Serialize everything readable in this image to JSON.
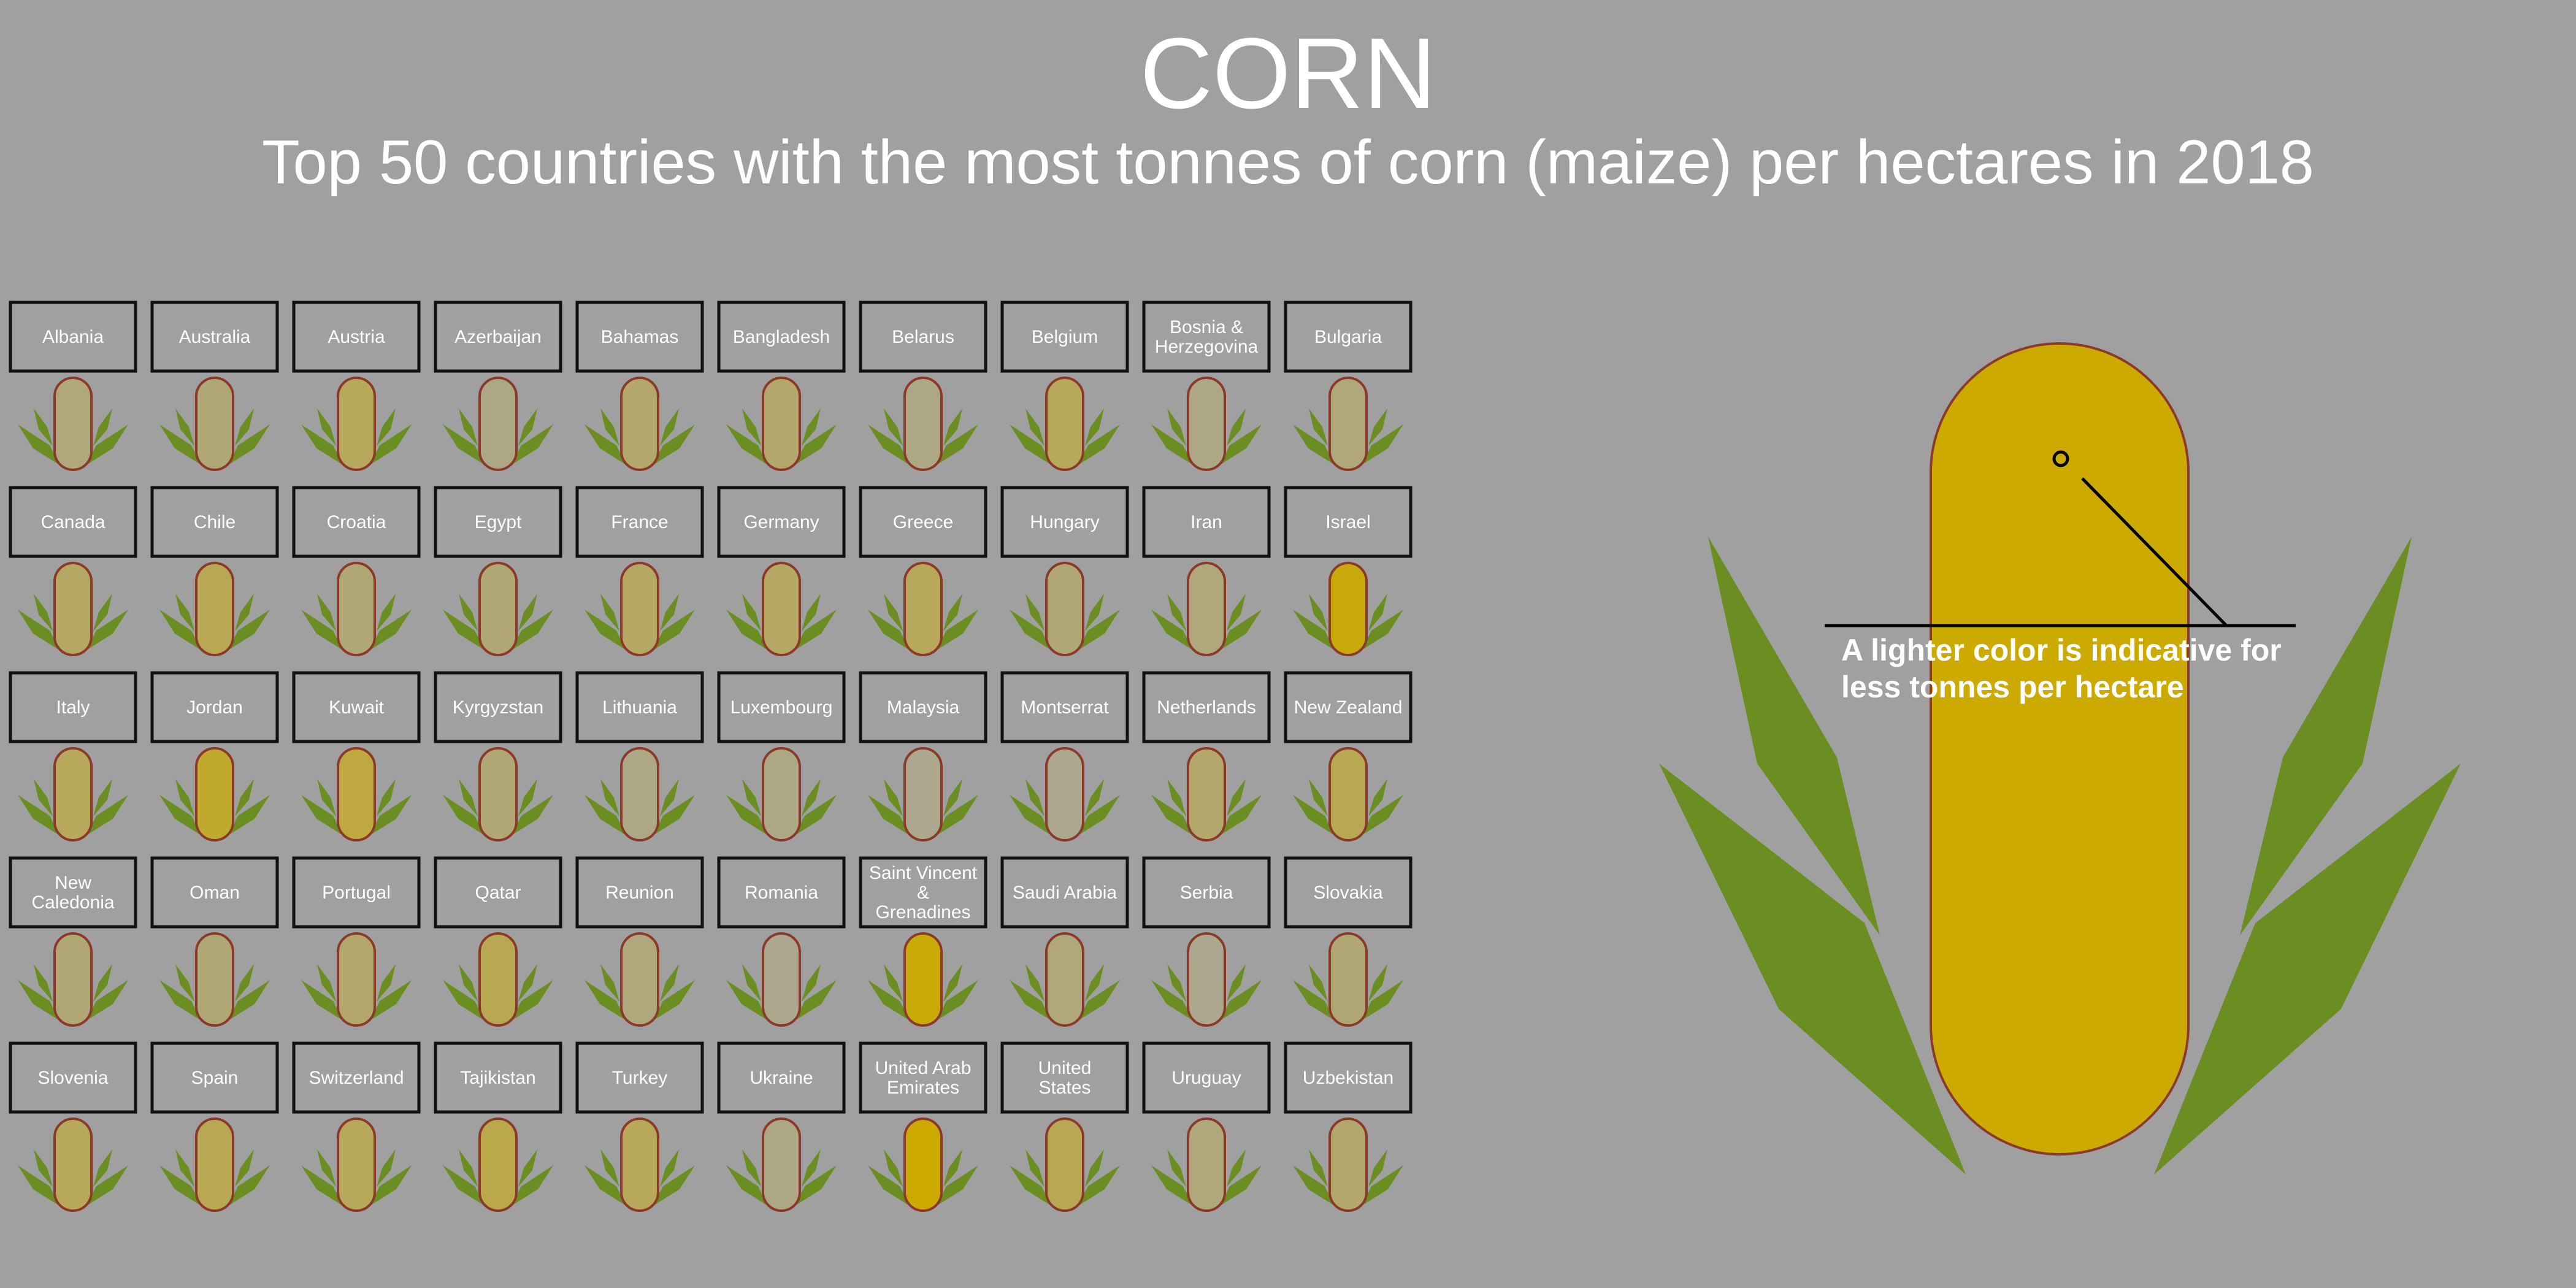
{
  "title": "CORN",
  "subtitle": "Top 50 countries with the most tonnes of corn (maize) per hectares in 2018",
  "legend_note": "A lighter color is indicative for less tonnes per hectare",
  "colors": {
    "background": "#a0a0a0",
    "low": "#a6a6a6",
    "high": "#ccaa00",
    "leaf": "#6b8e23",
    "cob_outline": "#8b3a2a"
  },
  "chart_data": {
    "type": "table",
    "title": "CORN",
    "subtitle": "Top 50 countries with the most tonnes of corn (maize) per hectares in 2018",
    "encoding": "relative yield shown by cob color intensity (0 = lightest, 1 = darkest)",
    "countries": [
      {
        "name": "Albania",
        "level": 0.25
      },
      {
        "name": "Australia",
        "level": 0.3
      },
      {
        "name": "Austria",
        "level": 0.45
      },
      {
        "name": "Azerbaijan",
        "level": 0.2
      },
      {
        "name": "Bahamas",
        "level": 0.35
      },
      {
        "name": "Bangladesh",
        "level": 0.35
      },
      {
        "name": "Belarus",
        "level": 0.2
      },
      {
        "name": "Belgium",
        "level": 0.45
      },
      {
        "name": "Bosnia & Herzegovina",
        "level": 0.2
      },
      {
        "name": "Bulgaria",
        "level": 0.25
      },
      {
        "name": "Canada",
        "level": 0.4
      },
      {
        "name": "Chile",
        "level": 0.5
      },
      {
        "name": "Croatia",
        "level": 0.3
      },
      {
        "name": "Egypt",
        "level": 0.3
      },
      {
        "name": "France",
        "level": 0.4
      },
      {
        "name": "Germany",
        "level": 0.4
      },
      {
        "name": "Greece",
        "level": 0.45
      },
      {
        "name": "Hungary",
        "level": 0.3
      },
      {
        "name": "Iran",
        "level": 0.25
      },
      {
        "name": "Israel",
        "level": 0.92
      },
      {
        "name": "Italy",
        "level": 0.45
      },
      {
        "name": "Jordan",
        "level": 0.72
      },
      {
        "name": "Kuwait",
        "level": 0.62
      },
      {
        "name": "Kyrgyzstan",
        "level": 0.3
      },
      {
        "name": "Lithuania",
        "level": 0.2
      },
      {
        "name": "Luxembourg",
        "level": 0.2
      },
      {
        "name": "Malaysia",
        "level": 0.15
      },
      {
        "name": "Montserrat",
        "level": 0.15
      },
      {
        "name": "Netherlands",
        "level": 0.35
      },
      {
        "name": "New Zealand",
        "level": 0.5
      },
      {
        "name": "New Caledonia",
        "level": 0.3
      },
      {
        "name": "Oman",
        "level": 0.3
      },
      {
        "name": "Portugal",
        "level": 0.35
      },
      {
        "name": "Qatar",
        "level": 0.5
      },
      {
        "name": "Reunion",
        "level": 0.25
      },
      {
        "name": "Romania",
        "level": 0.15
      },
      {
        "name": "Saint Vincent & Grenadines",
        "level": 0.95
      },
      {
        "name": "Saudi Arabia",
        "level": 0.25
      },
      {
        "name": "Serbia",
        "level": 0.15
      },
      {
        "name": "Slovakia",
        "level": 0.3
      },
      {
        "name": "Slovenia",
        "level": 0.45
      },
      {
        "name": "Spain",
        "level": 0.5
      },
      {
        "name": "Switzerland",
        "level": 0.45
      },
      {
        "name": "Tajikistan",
        "level": 0.55
      },
      {
        "name": "Turkey",
        "level": 0.45
      },
      {
        "name": "Ukraine",
        "level": 0.2
      },
      {
        "name": "United Arab Emirates",
        "level": 1.0
      },
      {
        "name": "United States",
        "level": 0.5
      },
      {
        "name": "Uruguay",
        "level": 0.25
      },
      {
        "name": "Uzbekistan",
        "level": 0.35
      }
    ]
  }
}
